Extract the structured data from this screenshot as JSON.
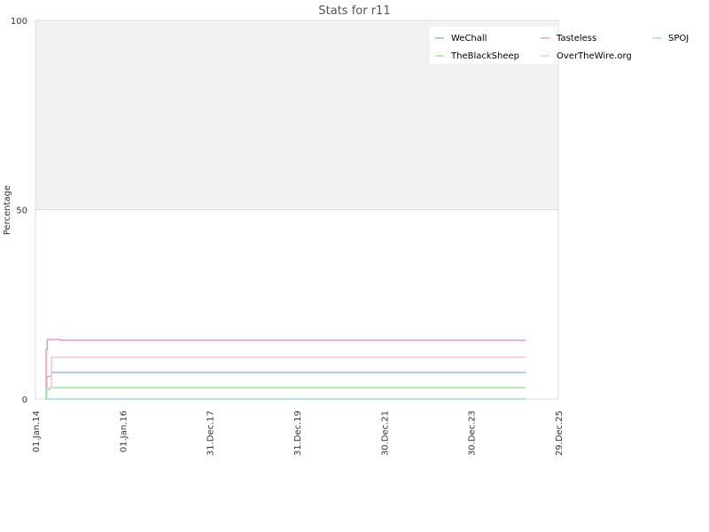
{
  "chart_data": {
    "type": "line",
    "title": "Stats for r11",
    "ylabel": "Percentage",
    "xlabel": "",
    "ylim": [
      0,
      100
    ],
    "xlim": [
      "2014-01-01",
      "2025-12-29"
    ],
    "y_ticks": [
      "0",
      "50",
      "100"
    ],
    "x_ticks": [
      {
        "label": "01.Jan.14",
        "date": "2014-01-01"
      },
      {
        "label": "01.Jan.16",
        "date": "2016-01-01"
      },
      {
        "label": "31.Dec.17",
        "date": "2017-12-31"
      },
      {
        "label": "31.Dec.19",
        "date": "2019-12-31"
      },
      {
        "label": "30.Dec.21",
        "date": "2021-12-30"
      },
      {
        "label": "30.Dec.23",
        "date": "2023-12-30"
      },
      {
        "label": "29.Dec.25",
        "date": "2025-12-29"
      }
    ],
    "upper_band": {
      "from": 50,
      "to": 100,
      "color": "#f2f2f2"
    },
    "legend_position": "top-right",
    "grid": false,
    "series": [
      {
        "name": "WeChall",
        "color": "#8cbfe0",
        "points": [
          [
            "2014-04-01",
            0
          ],
          [
            "2014-04-05",
            6
          ],
          [
            "2014-05-10",
            6
          ],
          [
            "2014-05-15",
            7
          ],
          [
            "2025-04-01",
            7
          ]
        ]
      },
      {
        "name": "Tasteless",
        "color": "#e79ac6",
        "points": [
          [
            "2014-03-25",
            0
          ],
          [
            "2014-04-01",
            13
          ],
          [
            "2014-04-10",
            15.7
          ],
          [
            "2014-06-01",
            15.7
          ],
          [
            "2014-08-01",
            15.5
          ],
          [
            "2025-04-01",
            15.5
          ]
        ]
      },
      {
        "name": "SPOJ",
        "color": "#9fe0d6",
        "points": [
          [
            "2014-04-01",
            0
          ],
          [
            "2025-04-01",
            0
          ]
        ]
      },
      {
        "name": "TheBlackSheep",
        "color": "#9ee89e",
        "points": [
          [
            "2014-03-25",
            0
          ],
          [
            "2014-04-05",
            2.5
          ],
          [
            "2014-05-01",
            3
          ],
          [
            "2025-04-01",
            3
          ]
        ]
      },
      {
        "name": "OverTheWire.org",
        "color": "#f7c6d2",
        "points": [
          [
            "2014-04-20",
            3
          ],
          [
            "2014-05-10",
            3
          ],
          [
            "2014-05-15",
            11
          ],
          [
            "2025-04-01",
            11
          ]
        ]
      }
    ]
  }
}
